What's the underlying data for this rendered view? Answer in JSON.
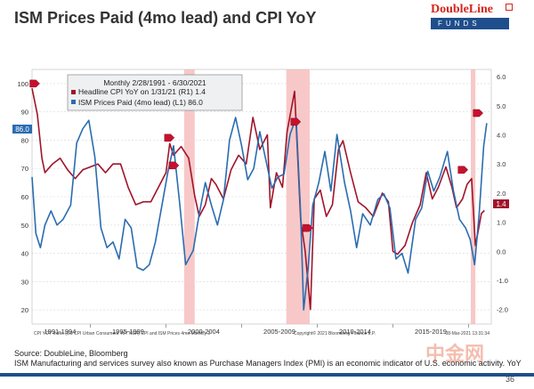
{
  "title": "ISM Prices Paid (4mo lead) and CPI YoY",
  "logo": {
    "name": "DoubleLine",
    "sub": "FUNDS"
  },
  "legend": {
    "header": "Monthly 2/28/1991 - 6/30/2021",
    "items": [
      {
        "label": "Headline CPI YoY on 1/31/21 (R1)  1.4",
        "color": "#a0142a"
      },
      {
        "label": "ISM Prices Paid (4mo lead) (L1)   86.0",
        "color": "#2a6cb0"
      }
    ]
  },
  "current_value_tags": {
    "left": "86.0",
    "right": "1.4"
  },
  "footnote_left": "CPI YOY Index (US CPI Urban Consumers YoY NSA) CPI and ISM Prices 4mo  Monthly 2",
  "footnote_right": "Copyright© 2021 Bloomberg Finance L.P.",
  "timestamp": "08-Mar-2021 13:31:34",
  "source": "Source: DoubleLine, Bloomberg",
  "note": "ISM Manufacturing and services survey also known as Purchase Managers Index (PMI) is an economic indicator of U.S. economic activity. YoY",
  "page_number": "36",
  "watermark": "中金网",
  "chart_data": {
    "type": "line",
    "title": "ISM Prices Paid (4mo lead) and CPI YoY",
    "x_range": [
      1991.15,
      2021.5
    ],
    "x_tick_labels": [
      "1991-1994",
      "1995-1999",
      "2000-2004",
      "2005-2009",
      "2010-2014",
      "2015-2019"
    ],
    "left_axis": {
      "range": [
        15,
        105
      ],
      "ticks": [
        20,
        30,
        40,
        50,
        60,
        70,
        80,
        90,
        100
      ]
    },
    "right_axis": {
      "range": [
        -2.5,
        6.25
      ],
      "ticks": [
        "-2.0",
        "-1.0",
        "0.0",
        "1.0",
        "2.0",
        "3.0",
        "4.0",
        "5.0",
        "6.0"
      ]
    },
    "recessions": [
      [
        2001.2,
        2001.9
      ],
      [
        2007.95,
        2009.5
      ],
      [
        2020.15,
        2020.45
      ]
    ],
    "markers": [
      {
        "axis": "left",
        "x": 1991.3,
        "y": 100
      },
      {
        "axis": "right",
        "x": 2000.2,
        "y": 3.9
      },
      {
        "axis": "right",
        "x": 2000.5,
        "y": 2.95
      },
      {
        "axis": "right",
        "x": 2008.55,
        "y": 4.45
      },
      {
        "axis": "right",
        "x": 2009.35,
        "y": 0.8
      },
      {
        "axis": "right",
        "x": 2019.6,
        "y": 2.8
      },
      {
        "axis": "right",
        "x": 2020.6,
        "y": 4.75
      }
    ],
    "series": [
      {
        "name": "Headline CPI YoY on 1/31/21 (R1)",
        "axis": "right",
        "x": [
          1991.15,
          1991.5,
          1991.8,
          1992.0,
          1992.5,
          1993.0,
          1993.5,
          1994.0,
          1994.5,
          1995.0,
          1995.5,
          1996.0,
          1996.5,
          1997.0,
          1997.5,
          1998.0,
          1998.5,
          1999.0,
          1999.5,
          2000.0,
          2000.25,
          2000.5,
          2001.0,
          2001.5,
          2001.9,
          2002.2,
          2002.6,
          2003.0,
          2003.3,
          2003.8,
          2004.3,
          2004.8,
          2005.3,
          2005.75,
          2006.2,
          2006.7,
          2006.9,
          2007.3,
          2007.7,
          2008.0,
          2008.5,
          2008.9,
          2009.2,
          2009.55,
          2009.8,
          2010.2,
          2010.6,
          2011.0,
          2011.4,
          2011.7,
          2012.2,
          2012.7,
          2013.2,
          2013.7,
          2014.3,
          2014.7,
          2015.0,
          2015.3,
          2015.8,
          2016.3,
          2016.8,
          2017.2,
          2017.6,
          2018.0,
          2018.5,
          2018.9,
          2019.2,
          2019.6,
          2019.9,
          2020.2,
          2020.45,
          2020.6,
          2020.85,
          2021.05
        ],
        "values": [
          5.6,
          4.7,
          3.2,
          2.7,
          3.0,
          3.2,
          2.8,
          2.5,
          2.8,
          2.9,
          3.0,
          2.7,
          3.0,
          3.0,
          2.2,
          1.6,
          1.7,
          1.7,
          2.2,
          2.7,
          3.7,
          3.3,
          3.6,
          3.2,
          1.9,
          1.2,
          1.6,
          2.5,
          2.3,
          1.8,
          2.8,
          3.3,
          3.0,
          4.6,
          3.5,
          4.0,
          1.5,
          2.7,
          2.2,
          4.1,
          5.5,
          1.1,
          0.0,
          -2.0,
          1.8,
          2.1,
          1.2,
          1.6,
          3.5,
          3.8,
          2.7,
          1.7,
          1.5,
          1.2,
          2.0,
          1.7,
          0.0,
          -0.1,
          0.2,
          1.0,
          1.6,
          2.7,
          1.8,
          2.2,
          2.9,
          2.2,
          1.5,
          1.8,
          2.3,
          2.5,
          0.2,
          0.6,
          1.3,
          1.4
        ]
      },
      {
        "name": "ISM Prices Paid (4mo lead) (L1)",
        "axis": "left",
        "x": [
          1991.15,
          1991.4,
          1991.7,
          1992.0,
          1992.4,
          1992.8,
          1993.2,
          1993.7,
          1994.1,
          1994.5,
          1994.9,
          1995.3,
          1995.7,
          1996.1,
          1996.5,
          1996.9,
          1997.3,
          1997.7,
          1998.1,
          1998.5,
          1998.9,
          1999.3,
          1999.7,
          2000.1,
          2000.5,
          2000.9,
          2001.3,
          2001.8,
          2002.2,
          2002.6,
          2003.0,
          2003.4,
          2003.8,
          2004.2,
          2004.6,
          2005.0,
          2005.4,
          2005.8,
          2006.2,
          2006.6,
          2007.0,
          2007.4,
          2007.8,
          2008.2,
          2008.6,
          2008.9,
          2009.1,
          2009.4,
          2009.7,
          2010.1,
          2010.5,
          2010.9,
          2011.3,
          2011.8,
          2012.2,
          2012.6,
          2013.0,
          2013.5,
          2014.0,
          2014.4,
          2014.8,
          2015.2,
          2015.6,
          2016.0,
          2016.5,
          2016.9,
          2017.3,
          2017.7,
          2018.1,
          2018.6,
          2019.0,
          2019.4,
          2019.8,
          2020.1,
          2020.4,
          2020.7,
          2021.0,
          2021.2
        ],
        "values": [
          67,
          47,
          42,
          50,
          55,
          50,
          52,
          57,
          79,
          84,
          87,
          74,
          49,
          42,
          44,
          38,
          52,
          49,
          35,
          34,
          36,
          44,
          56,
          68,
          78,
          58,
          36,
          41,
          54,
          65,
          57,
          50,
          59,
          80,
          88,
          78,
          66,
          70,
          83,
          73,
          63,
          67,
          68,
          82,
          88,
          54,
          20,
          35,
          57,
          65,
          76,
          62,
          82,
          65,
          55,
          42,
          54,
          50,
          59,
          61,
          56,
          38,
          40,
          33,
          52,
          56,
          69,
          62,
          67,
          76,
          62,
          52,
          49,
          45,
          36,
          54,
          78,
          86
        ]
      }
    ]
  }
}
